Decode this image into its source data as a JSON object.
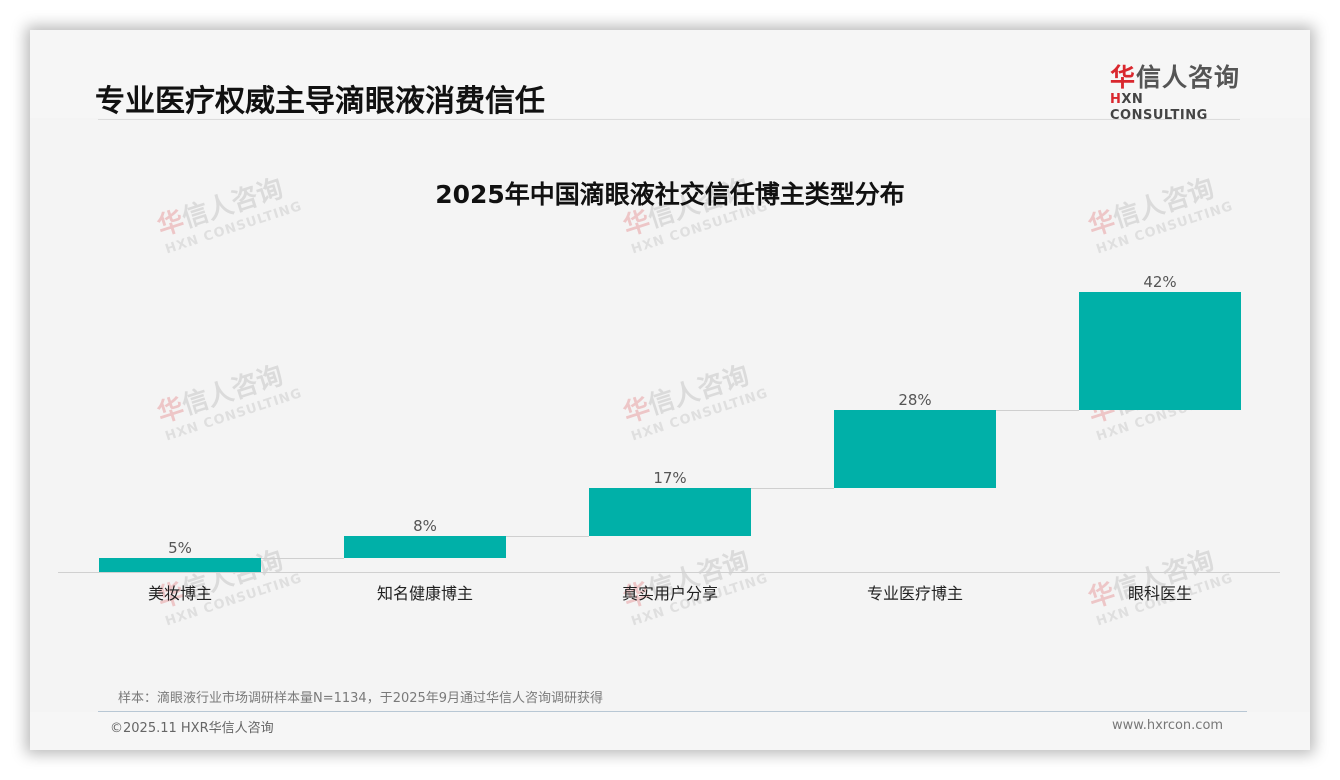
{
  "header": {
    "title": "专业医疗权威主导滴眼液消费信任",
    "logo": {
      "cn_red": "华",
      "cn_rest": "信人咨询",
      "en_red": "H",
      "en_rest": "XN CONSULTING"
    }
  },
  "watermark": {
    "cn_red": "华",
    "cn_rest": "信人咨询",
    "en": "HXN CONSULTING"
  },
  "colors": {
    "bar": "#00b0a8",
    "title": "#111111",
    "logo_red": "#d9272e"
  },
  "chart_data": {
    "type": "bar",
    "subtype": "waterfall",
    "title": "2025年中国滴眼液社交信任博主类型分布",
    "categories": [
      "美妆博主",
      "知名健康博主",
      "真实用户分享",
      "专业医疗博主",
      "眼科医生"
    ],
    "values": [
      5,
      8,
      17,
      28,
      42
    ],
    "value_labels": [
      "5%",
      "8%",
      "17%",
      "28%",
      "42%"
    ],
    "cumulative_total": 100,
    "xlabel": "",
    "ylabel": "",
    "ylim": [
      0,
      100
    ],
    "grid": false,
    "legend": "none",
    "bar_color": "#00b0a8"
  },
  "footer": {
    "note": "样本：滴眼液行业市场调研样本量N=1134，于2025年9月通过华信人咨询调研获得",
    "copyright": "©2025.11 HXR华信人咨询",
    "website": "www.hxrcon.com"
  }
}
